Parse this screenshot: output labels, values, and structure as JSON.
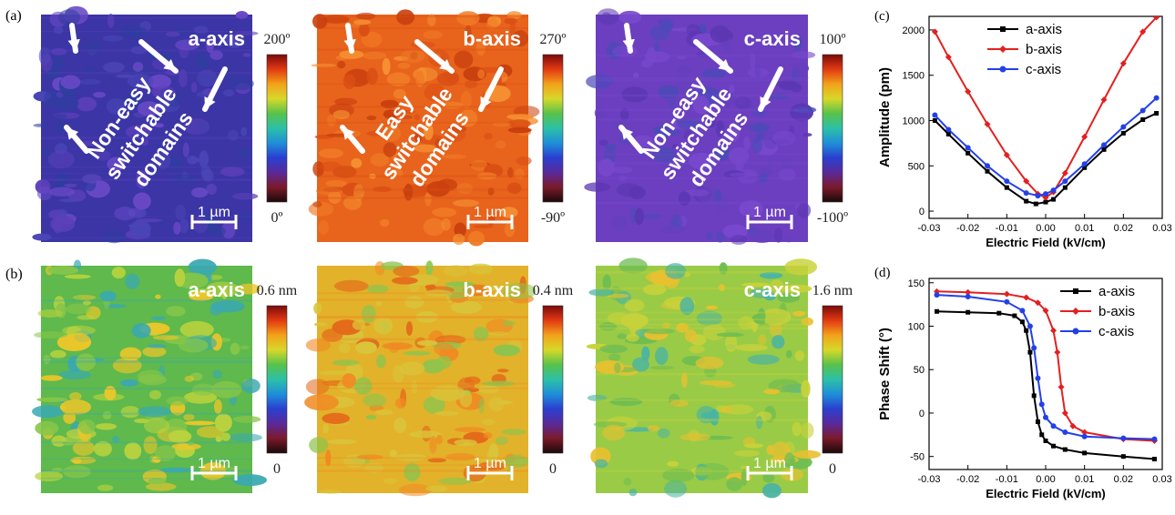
{
  "panels": {
    "a": "(a)",
    "b": "(b)",
    "c": "(c)",
    "d": "(d)"
  },
  "maps": {
    "phase": [
      {
        "axis": "a-axis",
        "scalebar": "1 µm",
        "cbar_top": "200º",
        "cbar_bottom": "0º",
        "annotation": [
          "Non-easy",
          "switchable",
          "domains"
        ],
        "palette": [
          "#3b35a6",
          "#4a45b6",
          "#5a3fb8",
          "#2f3da0",
          "#6a49c6"
        ]
      },
      {
        "axis": "b-axis",
        "scalebar": "1 µm",
        "cbar_top": "270º",
        "cbar_bottom": "-90º",
        "annotation": [
          "Easy",
          "switchable",
          "domains"
        ],
        "palette": [
          "#e8631c",
          "#f07a26",
          "#d94f14",
          "#f59032",
          "#c8400e"
        ]
      },
      {
        "axis": "c-axis",
        "scalebar": "1 µm",
        "cbar_top": "100º",
        "cbar_bottom": "-100º",
        "annotation": [
          "Non-easy",
          "switchable",
          "domains"
        ],
        "palette": [
          "#6b3fc0",
          "#5c37b2",
          "#7848cc",
          "#4c4ab8",
          "#6640bd"
        ]
      }
    ],
    "topo": [
      {
        "axis": "a-axis",
        "scalebar": "1 µm",
        "cbar_top": "0.6 nm",
        "cbar_bottom": "0",
        "palette": [
          "#5fb94c",
          "#86c64a",
          "#3aa9b0",
          "#b9d23e",
          "#e9c62a"
        ]
      },
      {
        "axis": "b-axis",
        "scalebar": "1 µm",
        "cbar_top": "0.4 nm",
        "cbar_bottom": "0",
        "palette": [
          "#e2b22a",
          "#d9c43a",
          "#f08a22",
          "#8dc44e",
          "#e36a1a"
        ]
      },
      {
        "axis": "c-axis",
        "scalebar": "1 µm",
        "cbar_top": "1.6 nm",
        "cbar_bottom": "0",
        "palette": [
          "#9acb46",
          "#6fbd52",
          "#c8d23a",
          "#4ab4a2",
          "#e8c030"
        ]
      }
    ],
    "colorbar_stops": [
      "#1a0a0a",
      "#7a1a2a",
      "#5a2a9a",
      "#2b3fd0",
      "#1f8fd8",
      "#2cc0a8",
      "#58c24a",
      "#d7d82a",
      "#f2a21a",
      "#e23a12",
      "#7a0a0a"
    ]
  },
  "chart_data": [
    {
      "type": "line",
      "panel": "(c)",
      "xlabel": "Electric Field (kV/cm)",
      "ylabel": "Amplitude (pm)",
      "xlim": [
        -0.03,
        0.03
      ],
      "ylim": [
        -80,
        2150
      ],
      "xticks": [
        "-0.03",
        "-0.02",
        "-0.01",
        "0.00",
        "0.01",
        "0.02",
        "0.03"
      ],
      "yticks": [
        "0",
        "500",
        "1000",
        "1500",
        "2000"
      ],
      "legend": "top-center",
      "series": [
        {
          "name": "a-axis",
          "color": "#000000",
          "x": [
            -0.0285,
            -0.025,
            -0.02,
            -0.015,
            -0.01,
            -0.005,
            -0.0025,
            0.0,
            0.002,
            0.005,
            0.01,
            0.015,
            0.02,
            0.025,
            0.0285
          ],
          "y": [
            1000,
            850,
            640,
            440,
            260,
            110,
            80,
            100,
            130,
            260,
            480,
            680,
            860,
            1010,
            1080
          ]
        },
        {
          "name": "b-axis",
          "color": "#e32020",
          "x": [
            -0.0285,
            -0.025,
            -0.02,
            -0.015,
            -0.01,
            -0.005,
            -0.002,
            0.0,
            0.002,
            0.005,
            0.01,
            0.015,
            0.02,
            0.025,
            0.0285
          ],
          "y": [
            1980,
            1700,
            1320,
            960,
            620,
            330,
            190,
            150,
            210,
            420,
            820,
            1230,
            1630,
            1980,
            2140
          ]
        },
        {
          "name": "c-axis",
          "color": "#2340e8",
          "x": [
            -0.0285,
            -0.025,
            -0.02,
            -0.015,
            -0.01,
            -0.005,
            -0.002,
            0.0,
            0.002,
            0.005,
            0.01,
            0.015,
            0.02,
            0.025,
            0.0285
          ],
          "y": [
            1060,
            900,
            700,
            500,
            330,
            200,
            170,
            190,
            230,
            330,
            520,
            730,
            930,
            1110,
            1250
          ]
        }
      ]
    },
    {
      "type": "line",
      "panel": "(d)",
      "xlabel": "Electric Field (kV/cm)",
      "ylabel": "Phase Shift (°)",
      "xlim": [
        -0.03,
        0.03
      ],
      "ylim": [
        -65,
        155
      ],
      "xticks": [
        "-0.03",
        "-0.02",
        "-0.01",
        "0.00",
        "0.01",
        "0.02",
        "0.03"
      ],
      "yticks": [
        "-50",
        "0",
        "50",
        "100",
        "150"
      ],
      "legend": "top-right",
      "series": [
        {
          "name": "a-axis",
          "color": "#000000",
          "x": [
            -0.028,
            -0.02,
            -0.012,
            -0.008,
            -0.006,
            -0.005,
            -0.004,
            -0.003,
            -0.002,
            -0.001,
            0.0,
            0.002,
            0.005,
            0.01,
            0.02,
            0.028
          ],
          "y": [
            117,
            116,
            115,
            112,
            105,
            95,
            70,
            20,
            -10,
            -25,
            -32,
            -38,
            -42,
            -46,
            -50,
            -53
          ]
        },
        {
          "name": "b-axis",
          "color": "#e32020",
          "x": [
            -0.028,
            -0.02,
            -0.01,
            -0.005,
            -0.002,
            0.0,
            0.002,
            0.003,
            0.004,
            0.005,
            0.007,
            0.01,
            0.02,
            0.028
          ],
          "y": [
            140,
            139,
            137,
            133,
            127,
            118,
            95,
            70,
            30,
            0,
            -15,
            -22,
            -30,
            -32
          ]
        },
        {
          "name": "c-axis",
          "color": "#2340e8",
          "x": [
            -0.028,
            -0.02,
            -0.01,
            -0.006,
            -0.004,
            -0.003,
            -0.002,
            -0.001,
            0.0,
            0.002,
            0.005,
            0.01,
            0.02,
            0.028
          ],
          "y": [
            136,
            134,
            128,
            118,
            100,
            75,
            40,
            10,
            -5,
            -15,
            -22,
            -27,
            -29,
            -30
          ]
        }
      ]
    }
  ]
}
